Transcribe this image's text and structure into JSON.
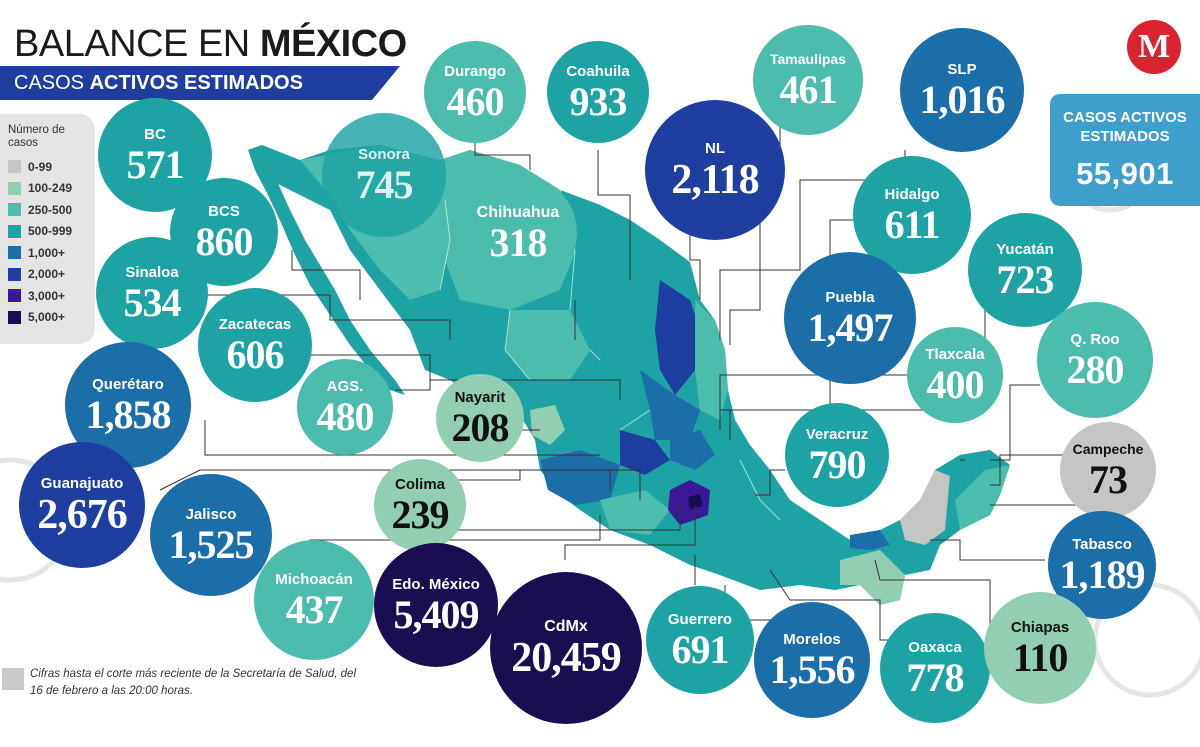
{
  "header": {
    "title_plain": "BALANCE EN",
    "title_bold": "MÉXICO",
    "subtitle_plain": "CASOS",
    "subtitle_bold": "ACTIVOS ESTIMADOS"
  },
  "logo": {
    "letter": "M",
    "color": "#d9232e"
  },
  "legend": {
    "title": "Número de casos",
    "items": [
      {
        "label": "0-99",
        "color": "#c3c6c2"
      },
      {
        "label": "100-249",
        "color": "#92cfb2"
      },
      {
        "label": "250-500",
        "color": "#4cbcac"
      },
      {
        "label": "500-999",
        "color": "#1da3a3"
      },
      {
        "label": "1,000+",
        "color": "#1c6ea8"
      },
      {
        "label": "2,000+",
        "color": "#1e3fa0"
      },
      {
        "label": "3,000+",
        "color": "#3a1896"
      },
      {
        "label": "5,000+",
        "color": "#1a0d52"
      }
    ]
  },
  "total": {
    "label": "CASOS ACTIVOS ESTIMADOS",
    "value": "55,901"
  },
  "states": [
    {
      "name": "BC",
      "value": "571"
    },
    {
      "name": "Sonora",
      "value": "745"
    },
    {
      "name": "Durango",
      "value": "460"
    },
    {
      "name": "Coahuila",
      "value": "933"
    },
    {
      "name": "Tamaulipas",
      "value": "461"
    },
    {
      "name": "SLP",
      "value": "1,016"
    },
    {
      "name": "NL",
      "value": "2,118"
    },
    {
      "name": "Chihuahua",
      "value": "318"
    },
    {
      "name": "BCS",
      "value": "860"
    },
    {
      "name": "Hidalgo",
      "value": "611"
    },
    {
      "name": "Yucatán",
      "value": "723"
    },
    {
      "name": "Sinaloa",
      "value": "534"
    },
    {
      "name": "Zacatecas",
      "value": "606"
    },
    {
      "name": "Puebla",
      "value": "1,497"
    },
    {
      "name": "Tlaxcala",
      "value": "400"
    },
    {
      "name": "Q. Roo",
      "value": "280"
    },
    {
      "name": "Querétaro",
      "value": "1,858"
    },
    {
      "name": "AGS.",
      "value": "480"
    },
    {
      "name": "Nayarit",
      "value": "208"
    },
    {
      "name": "Veracruz",
      "value": "790"
    },
    {
      "name": "Campeche",
      "value": "73"
    },
    {
      "name": "Guanajuato",
      "value": "2,676"
    },
    {
      "name": "Colima",
      "value": "239"
    },
    {
      "name": "Jalisco",
      "value": "1,525"
    },
    {
      "name": "Michoacán",
      "value": "437"
    },
    {
      "name": "Edo. México",
      "value": "5,409"
    },
    {
      "name": "CdMx",
      "value": "20,459"
    },
    {
      "name": "Guerrero",
      "value": "691"
    },
    {
      "name": "Tabasco",
      "value": "1,189"
    },
    {
      "name": "Morelos",
      "value": "1,556"
    },
    {
      "name": "Oaxaca",
      "value": "778"
    },
    {
      "name": "Chiapas",
      "value": "110"
    }
  ],
  "footnote": "Cifras hasta el corte más reciente de la Secretaría de Salud, del 16 de febrero a las 20:00 horas."
}
